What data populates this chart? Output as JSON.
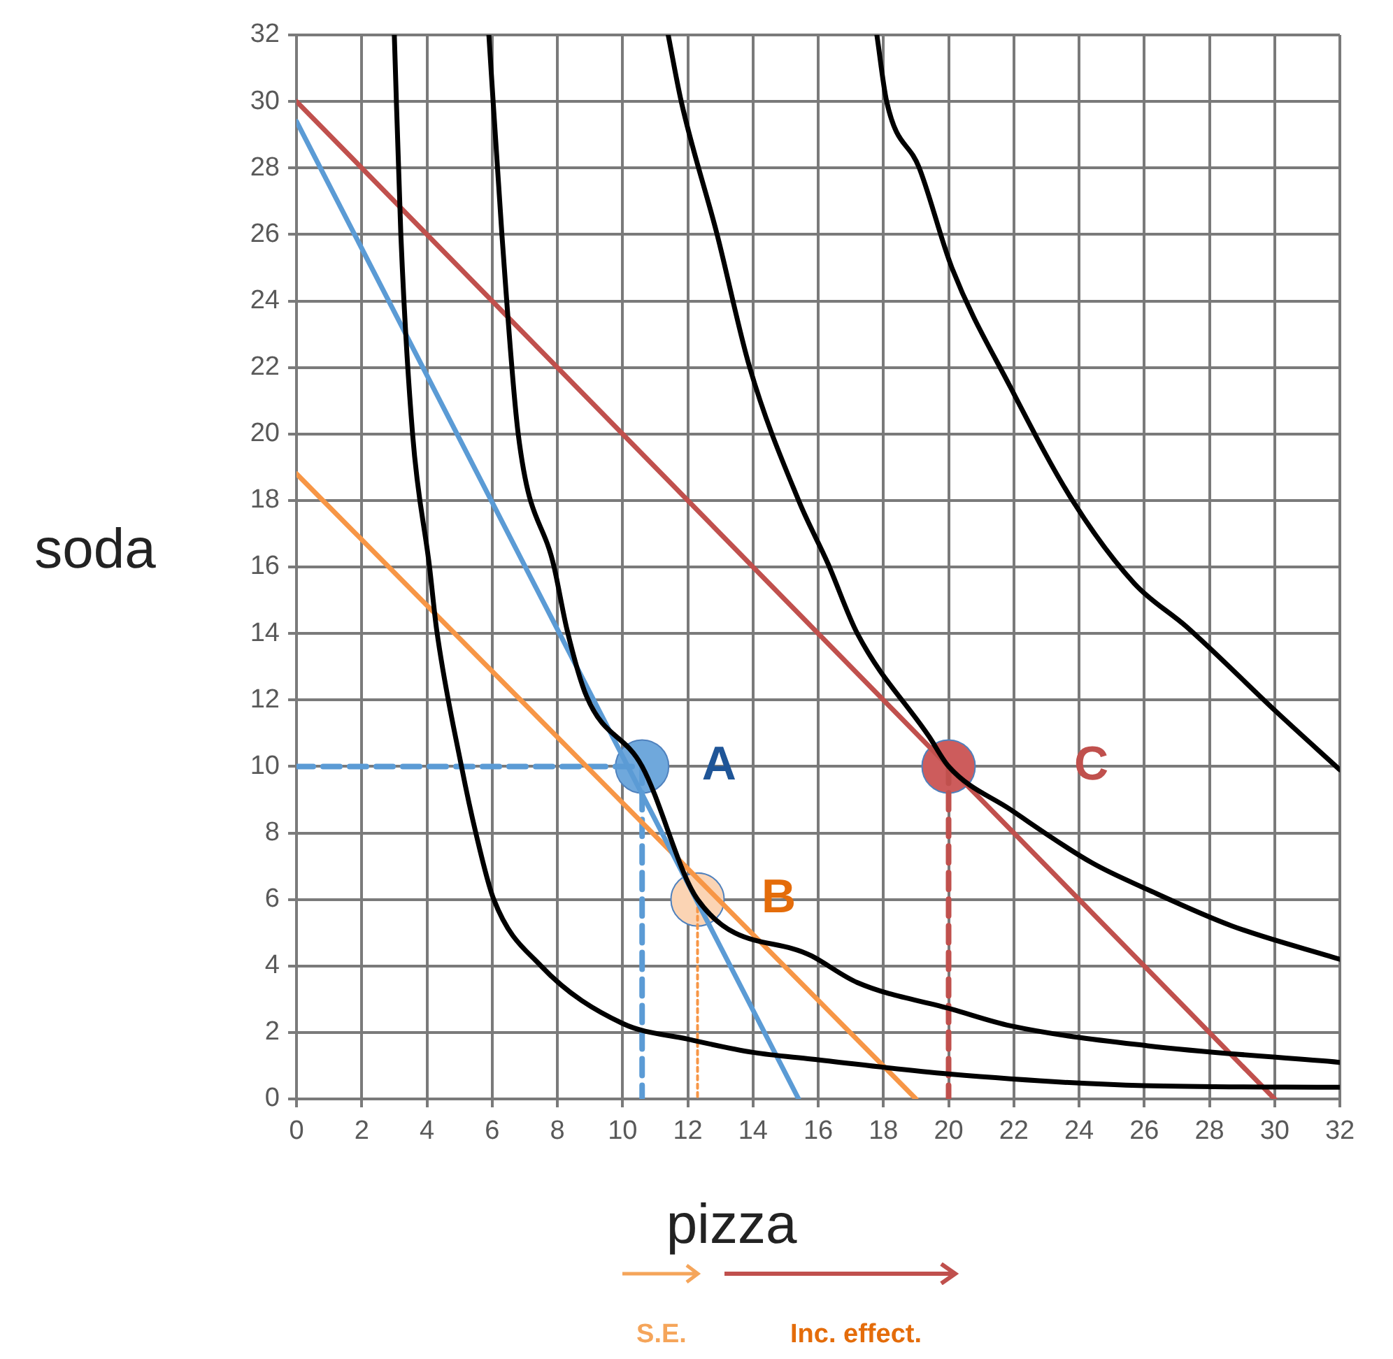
{
  "chart_data": {
    "type": "line",
    "xlabel": "pizza",
    "ylabel": "soda",
    "xlim": [
      0,
      32
    ],
    "ylim": [
      0,
      32
    ],
    "xticks": [
      0,
      2,
      4,
      6,
      8,
      10,
      12,
      14,
      16,
      18,
      20,
      22,
      24,
      26,
      28,
      30,
      32
    ],
    "yticks": [
      0,
      2,
      4,
      6,
      8,
      10,
      12,
      14,
      16,
      18,
      20,
      22,
      24,
      26,
      28,
      30,
      32
    ],
    "grid": true,
    "legend": false,
    "marker": "none",
    "series": [
      {
        "color": "#000000",
        "x": [
          3.0,
          3.2,
          3.56,
          4.08,
          4.3,
          5.06,
          5.5,
          6.05,
          7.5,
          10,
          12,
          14,
          15.8,
          20,
          26,
          32
        ],
        "values": [
          32,
          26,
          20,
          16,
          14.1,
          10,
          8,
          6,
          4,
          2.27,
          1.8,
          1.4,
          1.2,
          0.75,
          0.4,
          0.35
        ]
      },
      {
        "color": "#000000",
        "x": [
          5.9,
          6.3,
          6.8,
          7.9,
          8.3,
          8.9,
          10.6,
          12.3,
          15.8,
          17.2,
          20.1,
          21.9,
          26.1,
          32
        ],
        "values": [
          32,
          26,
          20,
          16,
          14.1,
          12.1,
          10,
          6,
          4.3,
          3.5,
          2.7,
          2.2,
          1.6,
          1.1
        ]
      },
      {
        "color": "#000000",
        "x": [
          11.4,
          11.8,
          12.9,
          13.9,
          15.4,
          16.3,
          17.2,
          19.4,
          20,
          21.9,
          24.4,
          26.1,
          28.7,
          32
        ],
        "values": [
          32,
          30,
          26,
          22,
          18,
          16.1,
          14,
          10.9,
          10,
          8.7,
          7.1,
          6.3,
          5.2,
          4.2
        ]
      },
      {
        "color": "#000000",
        "x": [
          17.8,
          18.1,
          19.1,
          20.1,
          21.9,
          23.8,
          25.7,
          27.3,
          30.1,
          32
        ],
        "values": [
          32,
          30,
          28,
          25,
          21.4,
          18,
          15.5,
          14.2,
          11.6,
          9.9
        ]
      },
      {
        "color": "#5b9bd5",
        "x": [
          0,
          15.4
        ],
        "values": [
          29.4,
          0
        ]
      },
      {
        "color": "#f79646",
        "x": [
          0,
          19
        ],
        "values": [
          18.8,
          0
        ]
      },
      {
        "color": "#c0504d",
        "x": [
          0,
          30
        ],
        "values": [
          30,
          0
        ]
      },
      {
        "color": "#5b9bd5",
        "line_style": "dashed",
        "x": [
          0,
          10.6
        ],
        "values": [
          10,
          10
        ]
      },
      {
        "color": "#5b9bd5",
        "line_style": "dashed",
        "x": [
          10.6,
          10.6
        ],
        "values": [
          10,
          0
        ]
      },
      {
        "color": "#c0504d",
        "line_style": "dashed",
        "x": [
          20,
          20
        ],
        "values": [
          10,
          0
        ]
      },
      {
        "color": "#f79646",
        "line_style": "dotted",
        "x": [
          12.3,
          12.3
        ],
        "values": [
          6,
          0
        ]
      },
      {
        "type": "scatter",
        "marker": "circle",
        "colors": [
          "#6fa8dc",
          "#fbd4b4",
          "#cd5c5c"
        ],
        "x": [
          10.6,
          12.3,
          20
        ],
        "values": [
          10,
          6,
          10
        ]
      }
    ],
    "annotations": [
      {
        "text": "A",
        "x": 10.6,
        "y": 10
      },
      {
        "text": "B",
        "x": 12.3,
        "y": 6
      },
      {
        "text": "C",
        "x": 20,
        "y": 10
      },
      "S.E.",
      "Inc. effect."
    ]
  }
}
